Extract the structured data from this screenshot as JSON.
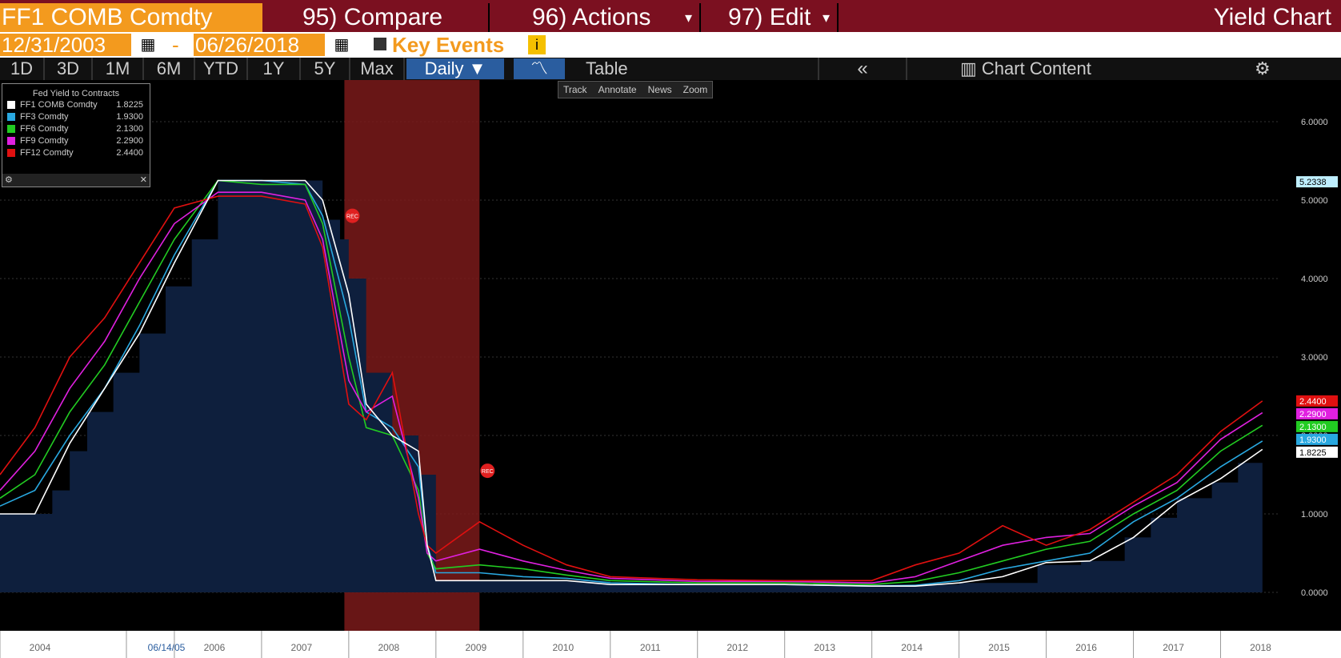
{
  "header": {
    "ticker": "FF1 COMB Comdty",
    "compare": "95) Compare",
    "actions": "96) Actions",
    "actions_caret": "▾",
    "edit": "97) Edit",
    "edit_caret": "▾",
    "title": "Yield Chart"
  },
  "dates": {
    "start": "12/31/2003",
    "sep": "-",
    "end": "06/26/2018",
    "key_events": "Key Events",
    "info": "i"
  },
  "periods": [
    "1D",
    "3D",
    "1M",
    "6M",
    "YTD",
    "1Y",
    "5Y",
    "Max"
  ],
  "frequency": "Daily ▼",
  "table": "Table",
  "collapse": "«",
  "chart_content": "Chart Content",
  "tools": [
    "Track",
    "Annotate",
    "News",
    "Zoom"
  ],
  "legend": {
    "title": "Fed Yield to Contracts",
    "rows": [
      {
        "name": "FF1 COMB Comdty",
        "value": "1.8225",
        "color": "#ffffff"
      },
      {
        "name": "FF3 Comdty",
        "value": "1.9300",
        "color": "#29a8e0"
      },
      {
        "name": "FF6 Comdty",
        "value": "2.1300",
        "color": "#22cc22"
      },
      {
        "name": "FF9 Comdty",
        "value": "2.2900",
        "color": "#e020e0"
      },
      {
        "name": "FF12 Comdty",
        "value": "2.4400",
        "color": "#e01010"
      }
    ]
  },
  "colors": {
    "area": "#0e1f3d",
    "recession": "#7a1a1a",
    "accent": "#f39a1e",
    "header": "#7b1020"
  },
  "chart_data": {
    "type": "line",
    "x_ticks": [
      "2004",
      "06/14/05",
      "2006",
      "2007",
      "2008",
      "2009",
      "2010",
      "2011",
      "2012",
      "2013",
      "2014",
      "2015",
      "2016",
      "2017",
      "2018"
    ],
    "y_ticks": [
      "0.0000",
      "1.0000",
      "2.0000",
      "3.0000",
      "4.0000",
      "5.0000",
      "6.0000"
    ],
    "ylim": [
      0,
      6
    ],
    "xlim": [
      2004.0,
      2018.5
    ],
    "recession": [
      2007.95,
      2009.5
    ],
    "rec_label": "REC",
    "last_labels": [
      {
        "text": "5.2338",
        "value": 5.2338,
        "color": "#bfefff"
      },
      {
        "text": "2.4400",
        "value": 2.44,
        "color": "#e01010"
      },
      {
        "text": "2.2900",
        "value": 2.29,
        "color": "#e020e0"
      },
      {
        "text": "2.1300",
        "value": 2.13,
        "color": "#22cc22"
      },
      {
        "text": "1.9300",
        "value": 1.93,
        "color": "#29a8e0"
      },
      {
        "text": "1.8225",
        "value": 1.8225,
        "color": "#ffffff"
      }
    ],
    "area_series": {
      "name": "FF1 COMB Comdty",
      "x": [
        2004.0,
        2004.4,
        2004.6,
        2004.8,
        2005.0,
        2005.3,
        2005.6,
        2005.9,
        2006.2,
        2006.5,
        2007.0,
        2007.5,
        2007.7,
        2007.9,
        2008.0,
        2008.2,
        2008.5,
        2008.8,
        2009.0,
        2009.5,
        2010.5,
        2011.0,
        2012.0,
        2013.0,
        2014.0,
        2015.0,
        2015.9,
        2016.4,
        2016.9,
        2017.2,
        2017.5,
        2017.9,
        2018.2,
        2018.48
      ],
      "y": [
        1.0,
        1.0,
        1.3,
        1.8,
        2.3,
        2.8,
        3.3,
        3.9,
        4.5,
        5.25,
        5.25,
        5.25,
        4.75,
        4.5,
        4.0,
        2.8,
        2.0,
        1.5,
        0.15,
        0.15,
        0.15,
        0.1,
        0.1,
        0.1,
        0.1,
        0.12,
        0.35,
        0.4,
        0.7,
        0.95,
        1.2,
        1.4,
        1.65,
        1.82
      ]
    },
    "series": [
      {
        "name": "FF3 Comdty",
        "color": "#29a8e0",
        "x": [
          2004.0,
          2004.4,
          2004.8,
          2005.2,
          2005.6,
          2006.0,
          2006.5,
          2007.0,
          2007.5,
          2007.7,
          2008.0,
          2008.2,
          2008.5,
          2008.8,
          2008.9,
          2009.0,
          2009.5,
          2010.0,
          2010.5,
          2011.0,
          2012.0,
          2013.0,
          2014.0,
          2014.5,
          2015.0,
          2015.5,
          2016.0,
          2016.5,
          2017.0,
          2017.5,
          2018.0,
          2018.48
        ],
        "y": [
          1.1,
          1.3,
          2.0,
          2.6,
          3.4,
          4.3,
          5.25,
          5.25,
          5.2,
          4.8,
          3.5,
          2.3,
          2.1,
          1.6,
          0.6,
          0.25,
          0.25,
          0.2,
          0.18,
          0.12,
          0.1,
          0.1,
          0.08,
          0.09,
          0.15,
          0.3,
          0.4,
          0.5,
          0.9,
          1.2,
          1.6,
          1.93
        ]
      },
      {
        "name": "FF6 Comdty",
        "color": "#22cc22",
        "x": [
          2004.0,
          2004.4,
          2004.8,
          2005.2,
          2005.6,
          2006.0,
          2006.5,
          2007.0,
          2007.5,
          2007.7,
          2008.0,
          2008.2,
          2008.5,
          2008.8,
          2008.9,
          2009.0,
          2009.5,
          2010.0,
          2010.5,
          2011.0,
          2012.0,
          2013.0,
          2014.0,
          2014.5,
          2015.0,
          2015.5,
          2016.0,
          2016.5,
          2017.0,
          2017.5,
          2018.0,
          2018.48
        ],
        "y": [
          1.2,
          1.5,
          2.3,
          2.9,
          3.7,
          4.5,
          5.25,
          5.2,
          5.2,
          4.7,
          3.0,
          2.1,
          2.0,
          1.3,
          0.5,
          0.3,
          0.35,
          0.3,
          0.22,
          0.15,
          0.12,
          0.12,
          0.1,
          0.14,
          0.25,
          0.4,
          0.55,
          0.65,
          1.0,
          1.3,
          1.8,
          2.13
        ]
      },
      {
        "name": "FF9 Comdty",
        "color": "#e020e0",
        "x": [
          2004.0,
          2004.4,
          2004.8,
          2005.2,
          2005.6,
          2006.0,
          2006.5,
          2007.0,
          2007.5,
          2007.7,
          2008.0,
          2008.2,
          2008.5,
          2008.8,
          2008.9,
          2009.0,
          2009.5,
          2010.0,
          2010.5,
          2011.0,
          2012.0,
          2013.0,
          2014.0,
          2014.5,
          2015.0,
          2015.5,
          2016.0,
          2016.5,
          2017.0,
          2017.5,
          2018.0,
          2018.48
        ],
        "y": [
          1.3,
          1.8,
          2.6,
          3.2,
          4.0,
          4.7,
          5.1,
          5.1,
          5.0,
          4.5,
          2.7,
          2.3,
          2.5,
          1.2,
          0.5,
          0.4,
          0.55,
          0.4,
          0.28,
          0.18,
          0.14,
          0.14,
          0.12,
          0.2,
          0.4,
          0.6,
          0.7,
          0.75,
          1.1,
          1.4,
          1.95,
          2.29
        ]
      },
      {
        "name": "FF12 Comdty",
        "color": "#e01010",
        "x": [
          2004.0,
          2004.4,
          2004.8,
          2005.2,
          2005.6,
          2006.0,
          2006.5,
          2007.0,
          2007.5,
          2007.7,
          2008.0,
          2008.2,
          2008.5,
          2008.8,
          2008.9,
          2009.0,
          2009.5,
          2010.0,
          2010.5,
          2011.0,
          2012.0,
          2013.0,
          2014.0,
          2014.5,
          2015.0,
          2015.5,
          2016.0,
          2016.5,
          2017.0,
          2017.5,
          2018.0,
          2018.48
        ],
        "y": [
          1.5,
          2.1,
          3.0,
          3.5,
          4.2,
          4.9,
          5.05,
          5.05,
          4.95,
          4.4,
          2.4,
          2.2,
          2.8,
          1.0,
          0.6,
          0.5,
          0.9,
          0.6,
          0.35,
          0.2,
          0.16,
          0.15,
          0.15,
          0.35,
          0.5,
          0.85,
          0.6,
          0.8,
          1.15,
          1.5,
          2.05,
          2.44
        ]
      },
      {
        "name": "FF1 COMB Comdty",
        "color": "#ffffff",
        "x": [
          2004.0,
          2004.4,
          2004.8,
          2005.2,
          2005.6,
          2006.0,
          2006.5,
          2007.0,
          2007.5,
          2007.7,
          2008.0,
          2008.2,
          2008.5,
          2008.8,
          2008.9,
          2009.0,
          2009.5,
          2010.0,
          2010.5,
          2011.0,
          2012.0,
          2013.0,
          2014.0,
          2014.5,
          2015.0,
          2015.5,
          2016.0,
          2016.5,
          2017.0,
          2017.5,
          2018.0,
          2018.48
        ],
        "y": [
          1.0,
          1.0,
          1.9,
          2.6,
          3.3,
          4.2,
          5.25,
          5.25,
          5.25,
          5.0,
          3.8,
          2.4,
          2.0,
          1.8,
          0.6,
          0.15,
          0.15,
          0.15,
          0.15,
          0.1,
          0.1,
          0.1,
          0.08,
          0.08,
          0.12,
          0.2,
          0.38,
          0.4,
          0.7,
          1.15,
          1.45,
          1.8225
        ]
      }
    ]
  }
}
